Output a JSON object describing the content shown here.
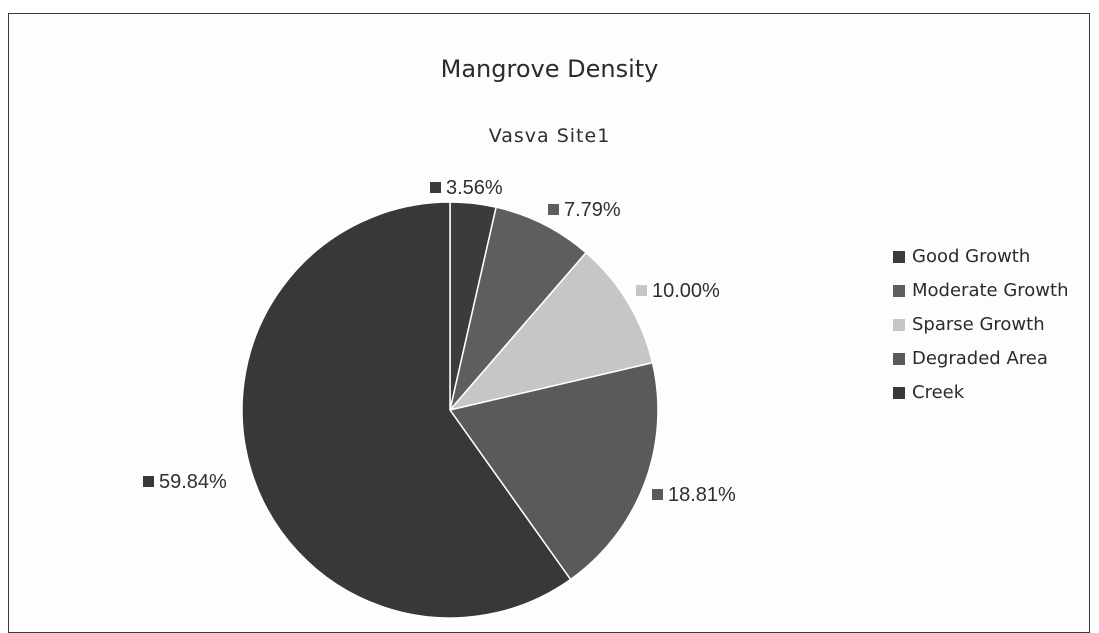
{
  "chart_data": {
    "type": "pie",
    "title": "Mangrove Density",
    "subtitle": "Vasva Site1",
    "categories": [
      "Good Growth",
      "Moderate Growth",
      "Sparse Growth",
      "Degraded Area",
      "Creek"
    ],
    "values": [
      3.56,
      7.79,
      10.0,
      18.81,
      59.84
    ],
    "data_labels": [
      "3.56%",
      "7.79%",
      "10.00%",
      "18.81%",
      "59.84%"
    ],
    "colors": [
      "#3b3b3b",
      "#5e5e5e",
      "#c6c6c6",
      "#5a5a5a",
      "#383838"
    ],
    "legend_position": "right",
    "start_angle_deg": 0,
    "direction": "clockwise"
  }
}
